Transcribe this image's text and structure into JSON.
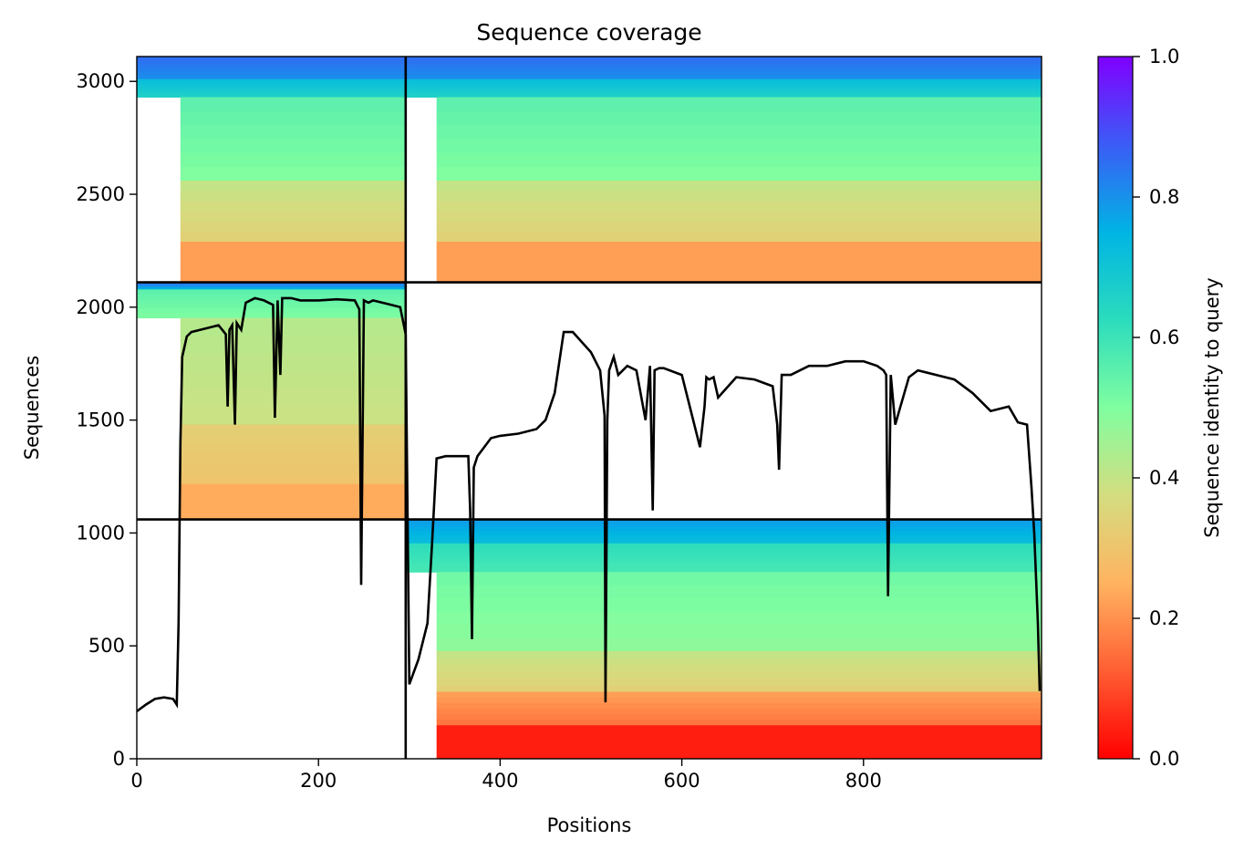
{
  "chart_data": {
    "type": "heatmap",
    "title": "Sequence coverage",
    "xlabel": "Positions",
    "ylabel": "Sequences",
    "colorbar_label": "Sequence identity to query",
    "xlim": [
      0,
      996
    ],
    "ylim": [
      0,
      3110
    ],
    "x_ticks": [
      0,
      200,
      400,
      600,
      800
    ],
    "y_ticks": [
      0,
      500,
      1000,
      1500,
      2000,
      2500,
      3000
    ],
    "colorbar_ticks": [
      "0.0",
      "0.2",
      "0.4",
      "0.6",
      "0.8",
      "1.0"
    ],
    "colorbar_range": [
      0.0,
      1.0
    ],
    "colormap": "rainbow_r",
    "chain_boundaries_x": [
      296
    ],
    "chain_boundaries_y": [
      1060,
      2110
    ],
    "blocks": [
      {
        "name": "chain1-pair-top",
        "x_range": [
          0,
          296
        ],
        "y_range": [
          2110,
          3110
        ],
        "x_start_lowid": 48,
        "x_end_lowid": 296,
        "bands": [
          [
            0,
            0.1,
            0.85
          ],
          [
            0.1,
            0.18,
            0.72
          ],
          [
            0.18,
            0.55,
            0.55
          ],
          [
            0.55,
            0.82,
            0.4
          ],
          [
            0.82,
            1.0,
            0.22
          ]
        ]
      },
      {
        "name": "chain2-pair-top",
        "x_range": [
          296,
          996
        ],
        "y_range": [
          2110,
          3110
        ],
        "x_start_lowid": 330,
        "x_end_lowid": 996,
        "bands": [
          [
            0,
            0.1,
            0.85
          ],
          [
            0.1,
            0.18,
            0.72
          ],
          [
            0.18,
            0.55,
            0.55
          ],
          [
            0.55,
            0.82,
            0.4
          ],
          [
            0.82,
            1.0,
            0.22
          ]
        ]
      },
      {
        "name": "chain1-unpaired",
        "x_range": [
          0,
          296
        ],
        "y_range": [
          1060,
          2110
        ],
        "x_start_lowid": 48,
        "x_end_lowid": 296,
        "bands": [
          [
            0,
            0.03,
            0.85
          ],
          [
            0.03,
            0.15,
            0.55
          ],
          [
            0.15,
            0.6,
            0.42
          ],
          [
            0.6,
            0.85,
            0.33
          ],
          [
            0.85,
            1.0,
            0.24
          ]
        ]
      },
      {
        "name": "chain2-unpaired",
        "x_range": [
          296,
          996
        ],
        "y_range": [
          0,
          1060
        ],
        "x_start_lowid": 330,
        "x_end_lowid": 996,
        "bands": [
          [
            0,
            0.1,
            0.78
          ],
          [
            0.1,
            0.22,
            0.62
          ],
          [
            0.22,
            0.55,
            0.52
          ],
          [
            0.55,
            0.72,
            0.4
          ],
          [
            0.72,
            0.86,
            0.22
          ],
          [
            0.86,
            1.0,
            0.04
          ]
        ]
      }
    ],
    "coverage_line": {
      "x": [
        0,
        10,
        20,
        30,
        40,
        44,
        46,
        48,
        50,
        55,
        60,
        70,
        80,
        90,
        98,
        100,
        102,
        105,
        108,
        110,
        115,
        120,
        130,
        140,
        150,
        152,
        155,
        158,
        160,
        165,
        170,
        180,
        200,
        220,
        240,
        245,
        247,
        250,
        255,
        260,
        280,
        290,
        296,
        300,
        310,
        320,
        325,
        330,
        340,
        360,
        365,
        367,
        369,
        371,
        375,
        390,
        400,
        420,
        440,
        450,
        460,
        470,
        480,
        500,
        510,
        515,
        516,
        518,
        520,
        525,
        530,
        540,
        550,
        560,
        565,
        568,
        570,
        575,
        580,
        600,
        620,
        625,
        627,
        630,
        635,
        640,
        660,
        680,
        700,
        705,
        707,
        710,
        720,
        740,
        760,
        780,
        800,
        815,
        822,
        825,
        827,
        830,
        835,
        840,
        850,
        860,
        880,
        900,
        920,
        940,
        960,
        970,
        980,
        985,
        988,
        990,
        992,
        994
      ],
      "y": [
        210,
        240,
        265,
        272,
        265,
        240,
        600,
        1400,
        1780,
        1870,
        1890,
        1900,
        1910,
        1920,
        1880,
        1560,
        1900,
        1920,
        1480,
        1930,
        1900,
        2020,
        2040,
        2030,
        2010,
        1510,
        2030,
        1700,
        2040,
        2040,
        2040,
        2030,
        2030,
        2035,
        2030,
        1990,
        770,
        2030,
        2020,
        2030,
        2010,
        2000,
        1880,
        330,
        440,
        600,
        950,
        1330,
        1340,
        1340,
        1340,
        1100,
        530,
        1290,
        1340,
        1420,
        1430,
        1440,
        1460,
        1500,
        1620,
        1890,
        1890,
        1800,
        1720,
        1520,
        250,
        1500,
        1720,
        1780,
        1700,
        1740,
        1720,
        1500,
        1740,
        1100,
        1720,
        1730,
        1730,
        1700,
        1380,
        1560,
        1690,
        1680,
        1690,
        1600,
        1690,
        1680,
        1650,
        1480,
        1280,
        1700,
        1700,
        1740,
        1740,
        1760,
        1760,
        1740,
        1720,
        1700,
        720,
        1700,
        1480,
        1550,
        1690,
        1720,
        1700,
        1680,
        1620,
        1540,
        1560,
        1490,
        1480,
        1200,
        1000,
        800,
        600,
        300
      ]
    }
  }
}
